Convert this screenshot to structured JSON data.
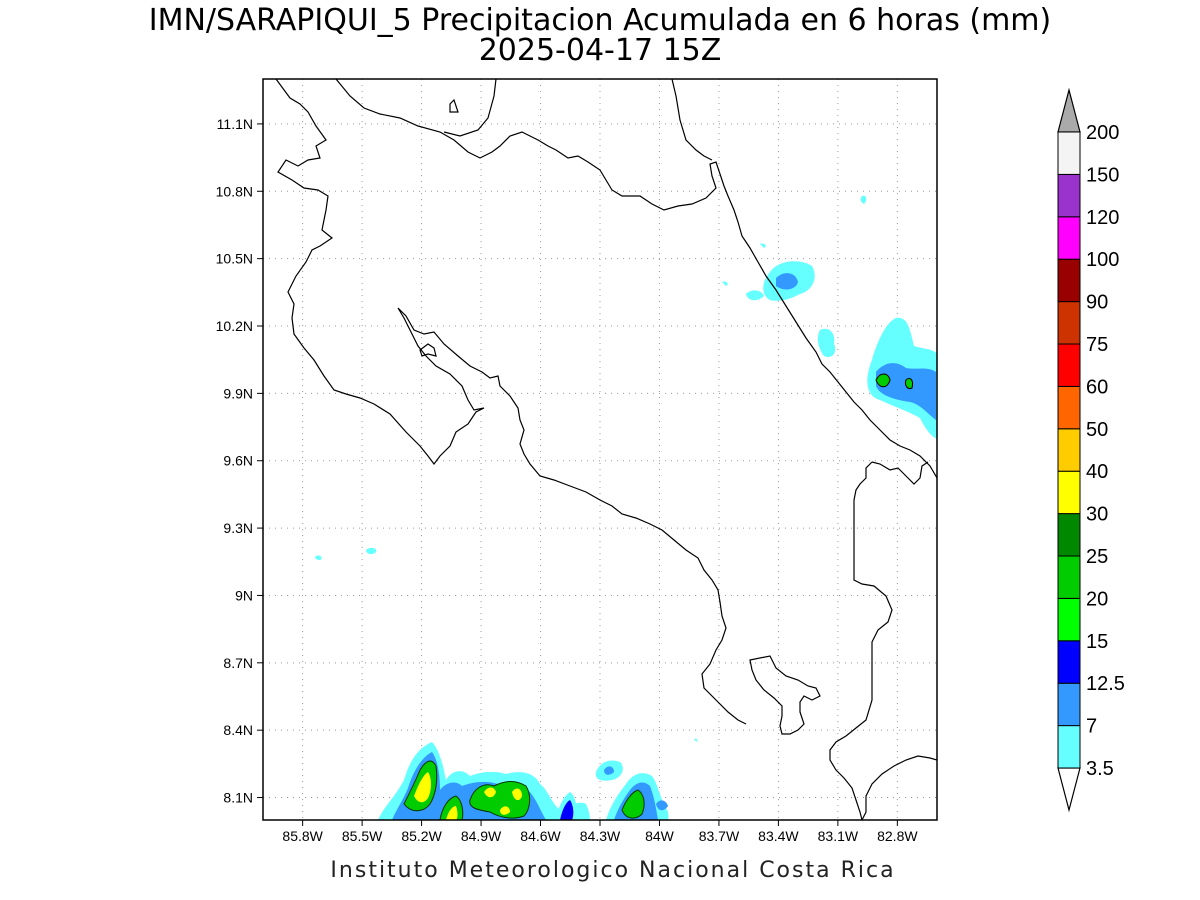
{
  "title": {
    "line1": "IMN/SARAPIQUI_5 Precipitacion Acumulada en 6 horas (mm)",
    "line2": "2025-04-17 15Z"
  },
  "footer": "Instituto Meteorologico Nacional Costa Rica",
  "map": {
    "lon_range": [
      -86.0,
      -82.6
    ],
    "lat_range": [
      8.0,
      11.3
    ],
    "grid_dotted": true,
    "lon_ticks": [
      "85.8W",
      "85.5W",
      "85.2W",
      "84.9W",
      "84.6W",
      "84.3W",
      "84W",
      "83.7W",
      "83.4W",
      "83.1W",
      "82.8W"
    ],
    "lat_ticks": [
      "11.1N",
      "10.8N",
      "10.5N",
      "10.2N",
      "9.9N",
      "9.6N",
      "9.3N",
      "9N",
      "8.7N",
      "8.4N",
      "8.1N"
    ]
  },
  "colorbar": {
    "labels": [
      "3.5",
      "7",
      "12.5",
      "15",
      "20",
      "25",
      "30",
      "40",
      "50",
      "60",
      "75",
      "90",
      "100",
      "120",
      "150",
      "200"
    ],
    "colors": [
      "#66ffff",
      "#3399ff",
      "#0000ff",
      "#00ff00",
      "#00cc00",
      "#008800",
      "#ffff00",
      "#ffcc00",
      "#ff6600",
      "#ff0000",
      "#cc3300",
      "#990000",
      "#ff00ff",
      "#9933cc",
      "#f4f4f4"
    ],
    "top_arrow_color": "#aaaaaa",
    "bottom_arrow_color": "#ffffff"
  }
}
